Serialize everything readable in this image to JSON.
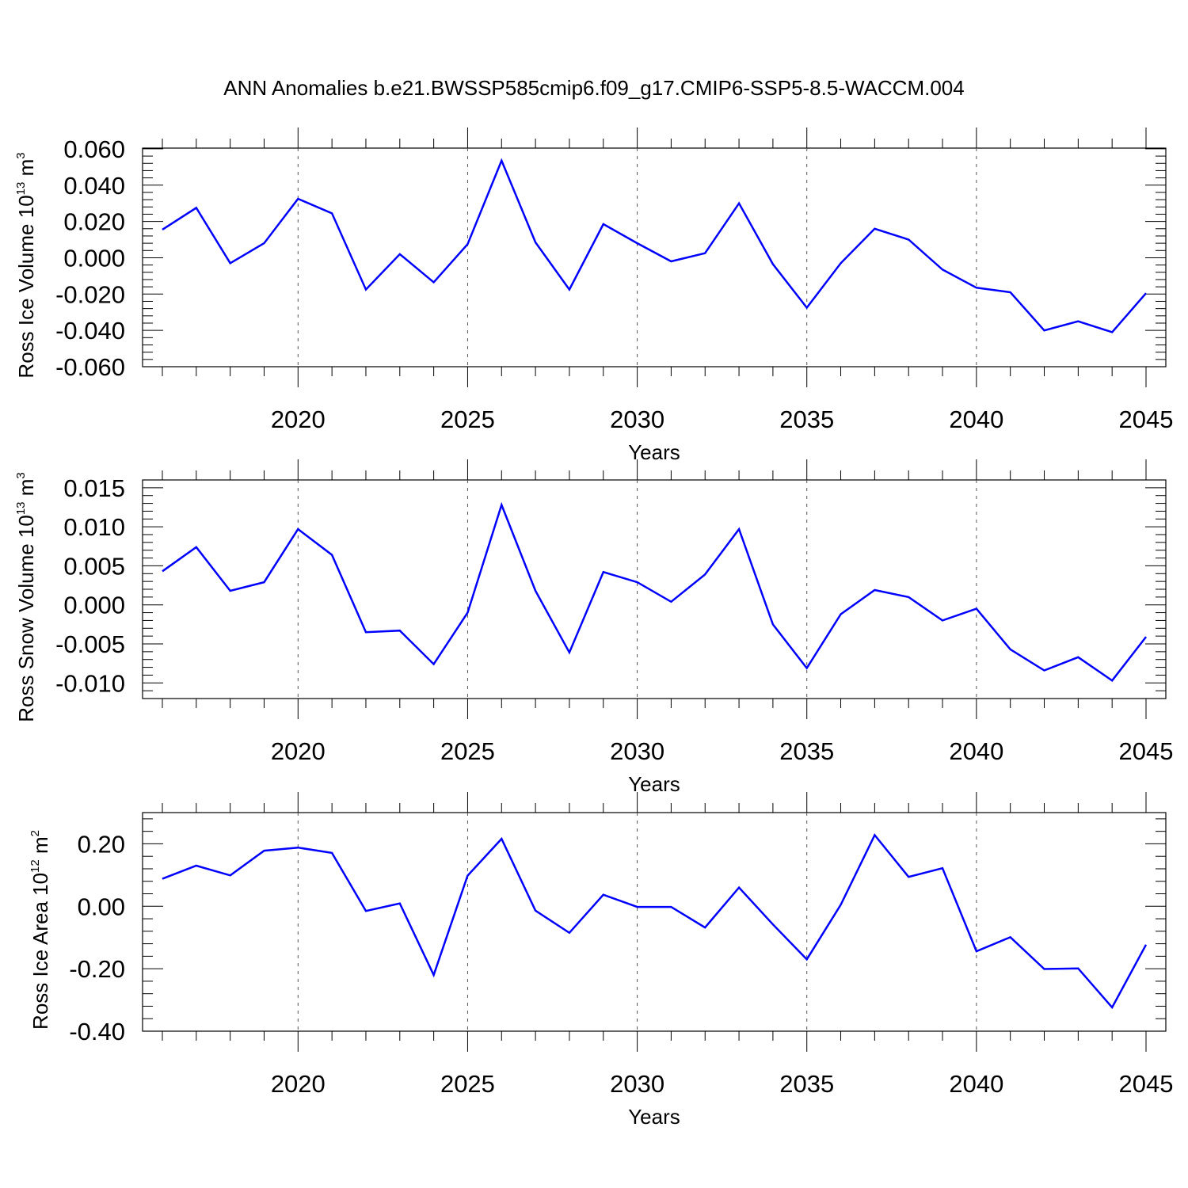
{
  "figure": {
    "title": "ANN Anomalies b.e21.BWSSP585cmip6.f09_g17.CMIP6-SSP5-8.5-WACCM.004"
  },
  "colors": {
    "series": "#0000ff",
    "axis": "#000000",
    "grid": "#555555"
  },
  "chart_data": [
    {
      "type": "line",
      "xlabel": "Years",
      "ylabel": {
        "prefix": "Ross Ice Volume 10",
        "exp": "13",
        "unit": " m",
        "unit_exp": "3"
      },
      "x": [
        2016,
        2017,
        2018,
        2019,
        2020,
        2021,
        2022,
        2023,
        2024,
        2025,
        2026,
        2027,
        2028,
        2029,
        2030,
        2031,
        2032,
        2033,
        2034,
        2035,
        2036,
        2037,
        2038,
        2039,
        2040,
        2041,
        2042,
        2043,
        2044,
        2045
      ],
      "values": [
        0.0155,
        0.0275,
        -0.003,
        0.008,
        0.0325,
        0.0245,
        -0.0175,
        0.002,
        -0.0135,
        0.0075,
        0.0535,
        0.0085,
        -0.0175,
        0.0185,
        0.008,
        -0.002,
        0.0025,
        0.03,
        -0.0035,
        -0.0275,
        -0.003,
        0.016,
        0.01,
        -0.0065,
        -0.0165,
        -0.019,
        -0.04,
        -0.035,
        -0.041,
        -0.0195
      ],
      "xlim": [
        2016,
        2045
      ],
      "ylim": [
        -0.06,
        0.06
      ],
      "xticks": [
        "2020",
        "2025",
        "2030",
        "2035",
        "2040",
        "2045"
      ],
      "yticks": [
        "0.060",
        "0.040",
        "0.020",
        "0.000",
        "-0.020",
        "-0.040",
        "-0.060"
      ],
      "ytick_values": [
        0.06,
        0.04,
        0.02,
        0,
        -0.02,
        -0.04,
        -0.06
      ],
      "ylim_plot": [
        -0.06,
        0.0604
      ],
      "grid": "vertical-dashed"
    },
    {
      "type": "line",
      "xlabel": "Years",
      "ylabel": {
        "prefix": "Ross Snow Volume 10",
        "exp": "13",
        "unit": " m",
        "unit_exp": "3"
      },
      "x": [
        2016,
        2017,
        2018,
        2019,
        2020,
        2021,
        2022,
        2023,
        2024,
        2025,
        2026,
        2027,
        2028,
        2029,
        2030,
        2031,
        2032,
        2033,
        2034,
        2035,
        2036,
        2037,
        2038,
        2039,
        2040,
        2041,
        2042,
        2043,
        2044,
        2045
      ],
      "values": [
        0.0043,
        0.0074,
        0.0018,
        0.0029,
        0.0097,
        0.0064,
        -0.0035,
        -0.0033,
        -0.0076,
        -0.001,
        0.0128,
        0.0018,
        -0.0061,
        0.0042,
        0.0029,
        0.0004,
        0.0039,
        0.0097,
        -0.0025,
        -0.0081,
        -0.0012,
        0.0019,
        0.001,
        -0.002,
        -0.0005,
        -0.0057,
        -0.0084,
        -0.0067,
        -0.0097,
        -0.0041
      ],
      "xlim": [
        2016,
        2045
      ],
      "ylim": [
        -0.012,
        0.016
      ],
      "xticks": [
        "2020",
        "2025",
        "2030",
        "2035",
        "2040",
        "2045"
      ],
      "yticks": [
        "0.015",
        "0.010",
        "0.005",
        "0.000",
        "-0.005",
        "-0.010"
      ],
      "ytick_values": [
        0.015,
        0.01,
        0.005,
        0,
        -0.005,
        -0.01
      ],
      "grid": "vertical-dashed"
    },
    {
      "type": "line",
      "xlabel": "Years",
      "ylabel": {
        "prefix": "Ross Ice Area 10",
        "exp": "12",
        "unit": " m",
        "unit_exp": "2"
      },
      "x": [
        2016,
        2017,
        2018,
        2019,
        2020,
        2021,
        2022,
        2023,
        2024,
        2025,
        2026,
        2027,
        2028,
        2029,
        2030,
        2031,
        2032,
        2033,
        2034,
        2035,
        2036,
        2037,
        2038,
        2039,
        2040,
        2041,
        2042,
        2043,
        2044,
        2045
      ],
      "values": [
        0.088,
        0.13,
        0.099,
        0.178,
        0.188,
        0.171,
        -0.015,
        0.009,
        -0.22,
        0.098,
        0.216,
        -0.014,
        -0.085,
        0.037,
        -0.002,
        -0.002,
        -0.068,
        0.06,
        -0.058,
        -0.17,
        0.005,
        0.228,
        0.094,
        0.122,
        -0.144,
        -0.099,
        -0.201,
        -0.199,
        -0.324,
        -0.123
      ],
      "xlim": [
        2016,
        2045
      ],
      "ylim": [
        -0.4,
        0.3
      ],
      "xticks": [
        "2020",
        "2025",
        "2030",
        "2035",
        "2040",
        "2045"
      ],
      "yticks": [
        "0.20",
        "0.00",
        "-0.20",
        "-0.40"
      ],
      "ytick_values": [
        0.2,
        0,
        -0.2,
        -0.4
      ],
      "grid": "vertical-dashed"
    }
  ]
}
